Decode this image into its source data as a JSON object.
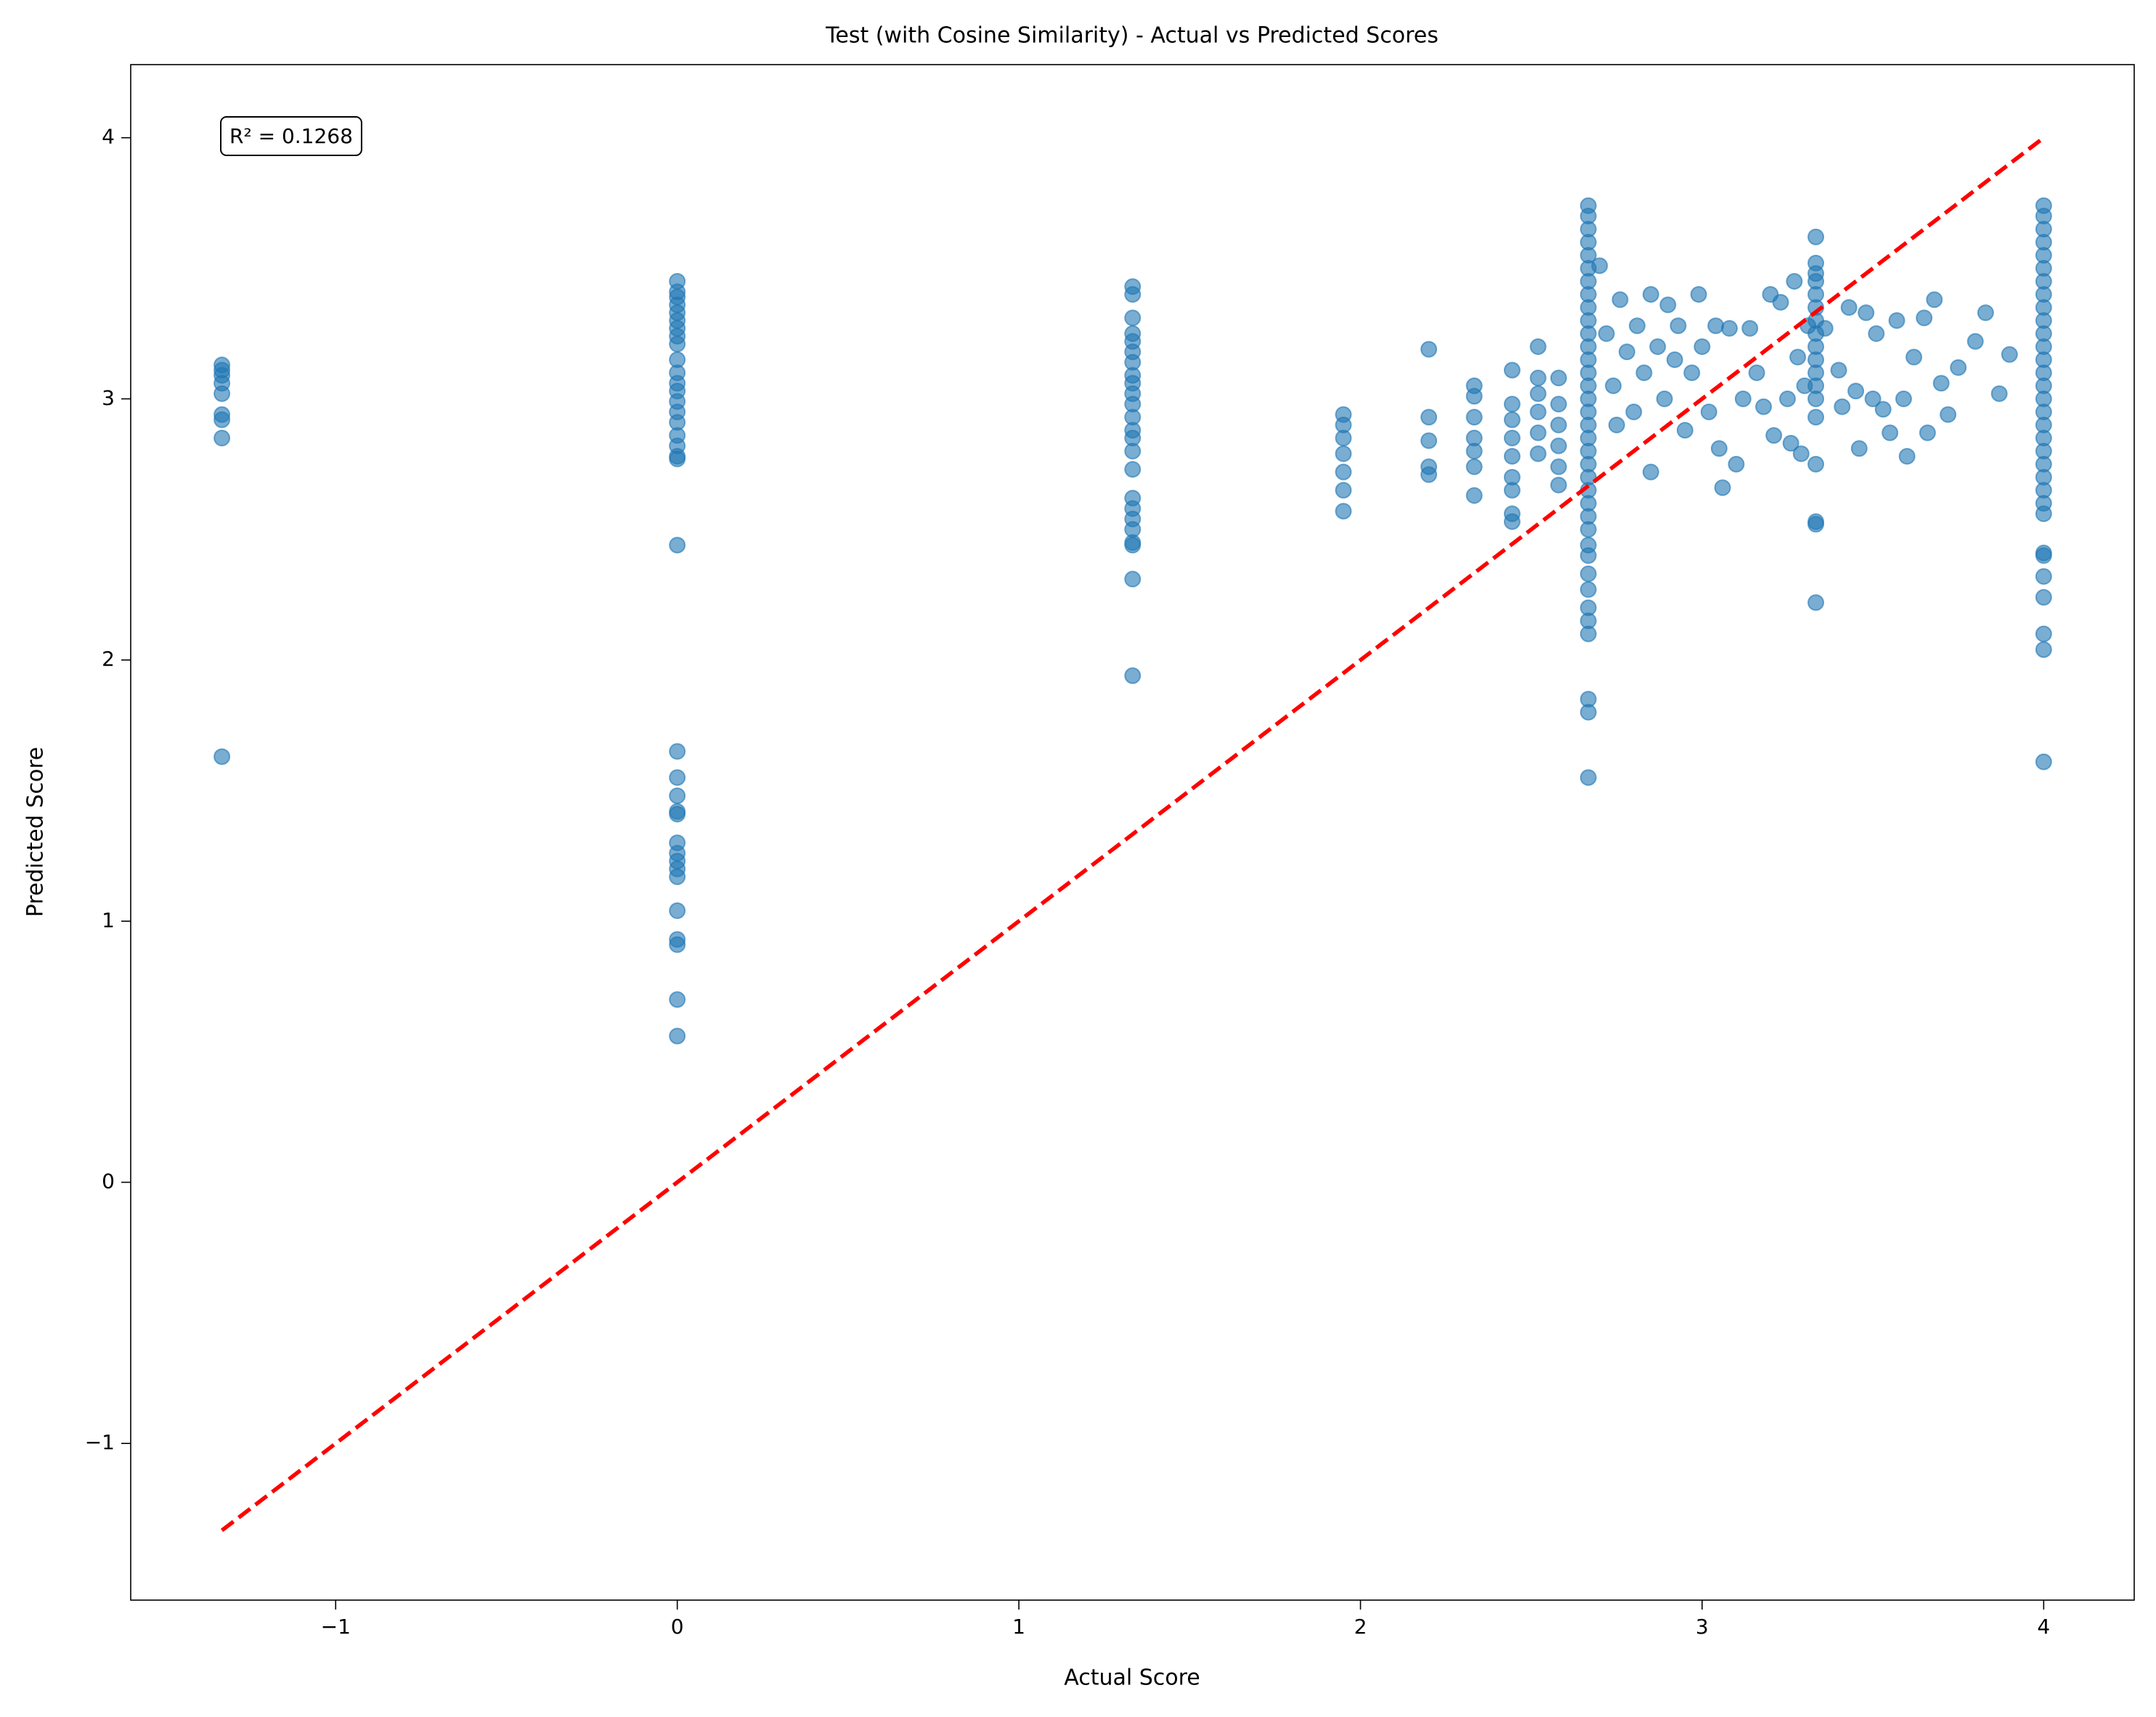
{
  "chart_data": {
    "type": "scatter",
    "title": "Test (with Cosine Similarity) - Actual vs Predicted Scores",
    "x_label": "Actual Score",
    "y_label": "Predicted Score",
    "annotation": "R² = 0.1268",
    "xlim": [
      -1.6,
      4.265
    ],
    "ylim": [
      -1.6,
      4.28
    ],
    "xticks": [
      {
        "value": -1,
        "label": "−1"
      },
      0,
      1,
      2,
      3,
      4
    ],
    "yticks": [
      {
        "value": -1,
        "label": "−1"
      },
      0,
      1,
      2,
      3,
      4
    ],
    "grid": false,
    "reference_line": {
      "x": [
        -1.333,
        4
      ],
      "y": [
        -1.333,
        4
      ],
      "color": "#ff0000",
      "style": "dashed"
    },
    "series": [
      {
        "color": "#1f77b4",
        "opacity": 0.6,
        "x": [
          -1.333,
          -1.333,
          -1.333,
          -1.333,
          -1.333,
          -1.333,
          -1.333,
          -1.333,
          -1.333,
          0,
          0,
          0,
          0,
          0,
          0,
          0,
          0,
          0,
          0,
          0,
          0,
          0,
          0,
          0,
          0,
          0,
          0,
          0,
          0,
          0,
          0,
          0,
          0,
          0,
          0,
          0,
          0,
          0,
          0,
          0,
          0,
          0,
          0,
          0,
          0,
          1.333,
          1.333,
          1.333,
          1.333,
          1.333,
          1.333,
          1.333,
          1.333,
          1.333,
          1.333,
          1.333,
          1.333,
          1.333,
          1.333,
          1.333,
          1.333,
          1.333,
          1.333,
          1.333,
          1.333,
          1.333,
          1.333,
          1.333,
          1.333,
          1.95,
          1.95,
          1.95,
          1.95,
          1.95,
          1.95,
          1.95,
          2.2,
          2.2,
          2.2,
          2.2,
          2.2,
          2.333,
          2.333,
          2.333,
          2.333,
          2.333,
          2.333,
          2.333,
          2.444,
          2.444,
          2.444,
          2.444,
          2.444,
          2.444,
          2.444,
          2.444,
          2.444,
          2.52,
          2.52,
          2.52,
          2.52,
          2.52,
          2.52,
          2.58,
          2.58,
          2.58,
          2.58,
          2.58,
          2.58,
          2.667,
          2.667,
          2.667,
          2.667,
          2.667,
          2.667,
          2.667,
          2.667,
          2.667,
          2.667,
          2.667,
          2.667,
          2.667,
          2.667,
          2.667,
          2.667,
          2.667,
          2.667,
          2.667,
          2.667,
          2.667,
          2.667,
          2.667,
          2.667,
          2.667,
          2.667,
          2.667,
          2.667,
          2.667,
          2.667,
          2.667,
          2.667,
          2.667,
          2.667,
          2.667,
          2.667,
          2.7,
          2.72,
          2.74,
          2.75,
          2.76,
          2.78,
          2.8,
          2.81,
          2.83,
          2.85,
          2.85,
          2.87,
          2.89,
          2.9,
          2.92,
          2.93,
          2.95,
          2.97,
          2.99,
          3.0,
          3.02,
          3.04,
          3.05,
          3.06,
          3.08,
          3.1,
          3.12,
          3.14,
          3.16,
          3.18,
          3.2,
          3.21,
          3.23,
          3.25,
          3.26,
          3.27,
          3.28,
          3.29,
          3.3,
          3.31,
          3.333,
          3.333,
          3.333,
          3.333,
          3.333,
          3.333,
          3.333,
          3.333,
          3.333,
          3.333,
          3.333,
          3.333,
          3.333,
          3.333,
          3.333,
          3.333,
          3.333,
          3.333,
          3.36,
          3.4,
          3.41,
          3.43,
          3.45,
          3.46,
          3.48,
          3.5,
          3.51,
          3.53,
          3.55,
          3.57,
          3.59,
          3.6,
          3.62,
          3.65,
          3.66,
          3.68,
          3.7,
          3.72,
          3.75,
          3.8,
          3.83,
          3.87,
          3.9,
          4,
          4,
          4,
          4,
          4,
          4,
          4,
          4,
          4,
          4,
          4,
          4,
          4,
          4,
          4,
          4,
          4,
          4,
          4,
          4,
          4,
          4,
          4,
          4,
          4,
          4,
          4,
          4,
          4,
          4,
          4,
          4
        ],
        "values": [
          3.13,
          3.11,
          3.09,
          3.06,
          3.02,
          2.94,
          2.92,
          2.85,
          1.63,
          3.45,
          3.41,
          3.39,
          3.36,
          3.33,
          3.3,
          3.27,
          3.24,
          3.21,
          3.15,
          3.1,
          3.06,
          3.03,
          2.99,
          2.95,
          2.91,
          2.86,
          2.82,
          2.78,
          2.77,
          2.44,
          1.65,
          1.55,
          1.48,
          1.42,
          1.41,
          1.3,
          1.26,
          1.23,
          1.2,
          1.17,
          1.04,
          0.93,
          0.91,
          0.7,
          0.56,
          3.43,
          3.4,
          3.31,
          3.25,
          3.22,
          3.18,
          3.14,
          3.09,
          3.06,
          3.02,
          2.98,
          2.93,
          2.88,
          2.85,
          2.8,
          2.73,
          2.62,
          2.58,
          2.54,
          2.5,
          2.45,
          2.44,
          2.31,
          1.94,
          2.94,
          2.9,
          2.85,
          2.79,
          2.72,
          2.65,
          2.57,
          3.19,
          2.93,
          2.84,
          2.74,
          2.71,
          3.05,
          3.01,
          2.93,
          2.85,
          2.8,
          2.74,
          2.63,
          3.11,
          2.98,
          2.92,
          2.85,
          2.78,
          2.7,
          2.65,
          2.56,
          2.53,
          3.2,
          3.08,
          3.02,
          2.95,
          2.87,
          2.79,
          3.08,
          2.98,
          2.9,
          2.82,
          2.74,
          2.67,
          3.74,
          3.7,
          3.65,
          3.6,
          3.55,
          3.5,
          3.45,
          3.4,
          3.35,
          3.3,
          3.25,
          3.2,
          3.15,
          3.1,
          3.05,
          3.0,
          2.95,
          2.9,
          2.85,
          2.8,
          2.75,
          2.7,
          2.65,
          2.6,
          2.55,
          2.5,
          2.44,
          2.4,
          2.33,
          2.27,
          2.2,
          2.15,
          2.1,
          1.85,
          1.8,
          1.55,
          3.51,
          3.25,
          3.05,
          2.9,
          3.38,
          3.18,
          2.95,
          3.28,
          3.1,
          3.4,
          2.72,
          3.2,
          3.0,
          3.36,
          3.15,
          3.28,
          2.88,
          3.1,
          3.4,
          3.2,
          2.95,
          3.28,
          2.81,
          2.66,
          3.27,
          2.75,
          3.0,
          3.27,
          3.1,
          2.97,
          3.4,
          2.86,
          3.37,
          3.0,
          2.83,
          3.45,
          3.16,
          2.79,
          3.05,
          3.28,
          3.62,
          3.52,
          3.48,
          3.45,
          3.4,
          3.35,
          3.3,
          3.25,
          3.2,
          3.15,
          3.1,
          3.05,
          3.0,
          2.93,
          2.75,
          2.53,
          2.52,
          2.22,
          3.27,
          3.11,
          2.97,
          3.35,
          3.03,
          2.81,
          3.33,
          3.0,
          3.25,
          2.96,
          2.87,
          3.3,
          3.0,
          2.78,
          3.16,
          3.31,
          2.87,
          3.38,
          3.06,
          2.94,
          3.12,
          3.22,
          3.33,
          3.02,
          3.17,
          3.74,
          3.7,
          3.65,
          3.6,
          3.55,
          3.5,
          3.45,
          3.4,
          3.35,
          3.3,
          3.25,
          3.2,
          3.15,
          3.1,
          3.05,
          3.0,
          2.95,
          2.9,
          2.85,
          2.8,
          2.75,
          2.7,
          2.65,
          2.6,
          2.56,
          2.41,
          2.4,
          2.32,
          2.24,
          2.1,
          2.04,
          1.61
        ]
      }
    ]
  }
}
